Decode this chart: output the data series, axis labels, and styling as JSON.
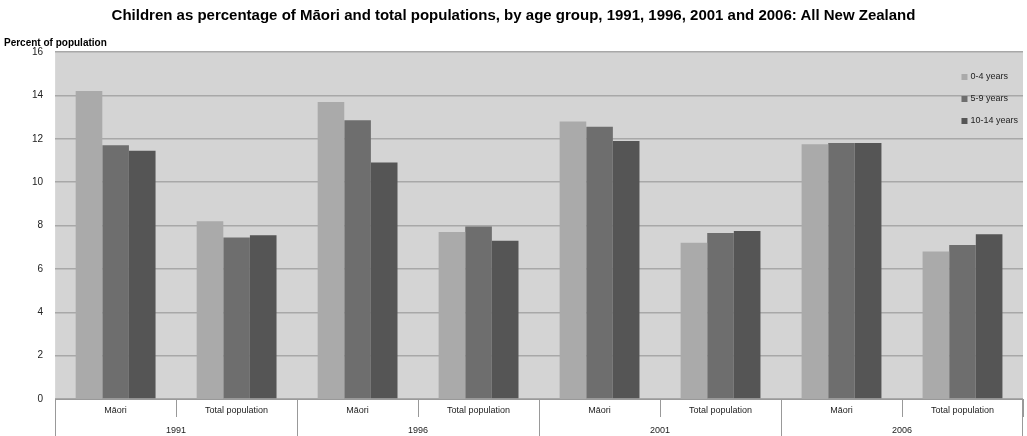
{
  "chart_data": {
    "type": "bar",
    "title": "Children as percentage of Māori and total populations, by age group, 1991, 1996, 2001 and 2006: All New Zealand",
    "ylabel": "Percent of population",
    "categories": [
      "Māori",
      "Total population",
      "Māori",
      "Total population",
      "Māori",
      "Total population",
      "Māori",
      "Total population"
    ],
    "annotations": [
      "1991",
      "1996",
      "2001",
      "2006"
    ],
    "series": [
      {
        "name": "0-4 years",
        "color": "#aaaaaa",
        "values": [
          14.2,
          8.2,
          13.7,
          7.7,
          12.8,
          7.2,
          11.75,
          6.8
        ]
      },
      {
        "name": "5-9 years",
        "color": "#6e6e6e",
        "values": [
          11.7,
          7.45,
          12.85,
          7.95,
          12.55,
          7.65,
          11.8,
          7.1
        ]
      },
      {
        "name": "10-14 years",
        "color": "#555555",
        "values": [
          11.45,
          7.55,
          10.9,
          7.3,
          11.9,
          7.75,
          11.8,
          7.6
        ]
      }
    ],
    "ylim": [
      0,
      16
    ],
    "yticks": [
      0,
      2,
      4,
      6,
      8,
      10,
      12,
      14,
      16
    ],
    "grid": "y",
    "legend": "top right"
  }
}
